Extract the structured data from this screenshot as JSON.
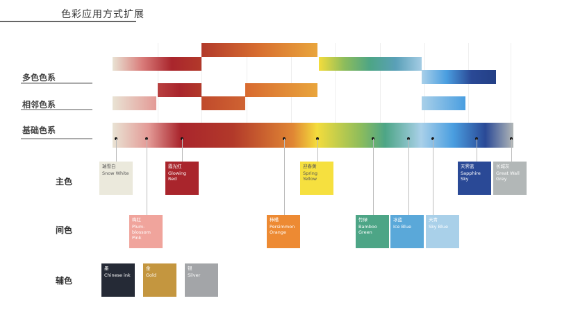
{
  "title": "色彩应用方式扩展",
  "row_labels": {
    "multi": "多色色系",
    "adjacent": "相邻色系",
    "base": "基础色系"
  },
  "categories": {
    "primary": "主色",
    "intermediate": "间色",
    "auxiliary": "辅色"
  },
  "swatches": {
    "primary": [
      {
        "cn": "瑞雪白",
        "en": "Snow White",
        "color": "#ebe9dc",
        "text": "#555"
      },
      {
        "cn": "霞光红",
        "en": "Glowing Red",
        "color": "#a9252c",
        "text": "#fff"
      },
      {
        "cn": "迎春黄",
        "en": "Spring Yellow",
        "color": "#f6e03f",
        "text": "#555"
      },
      {
        "cn": "天霁蓝",
        "en": "Sapphire Sky",
        "color": "#2a4996",
        "text": "#fff"
      },
      {
        "cn": "长城灰",
        "en": "Great Wall Grey",
        "color": "#b2b7b7",
        "text": "#fff"
      }
    ],
    "intermediate": [
      {
        "cn": "梅红",
        "en": "Plum-blossom Pink",
        "color": "#f0a49c",
        "text": "#fff"
      },
      {
        "cn": "柿橘",
        "en": "Persimmon Orange",
        "color": "#ed8a33",
        "text": "#fff"
      },
      {
        "cn": "竹绿",
        "en": "Bamboo Green",
        "color": "#4da586",
        "text": "#fff"
      },
      {
        "cn": "冰蓝",
        "en": "Ice Blue",
        "color": "#5aa8d9",
        "text": "#fff"
      },
      {
        "cn": "天青",
        "en": "Sky Blue",
        "color": "#a9d0e9",
        "text": "#fff"
      }
    ],
    "auxiliary": [
      {
        "cn": "墨",
        "en": "Chinese ink",
        "color": "#252a36",
        "text": "#fff"
      },
      {
        "cn": "金",
        "en": "Gold",
        "color": "#c4963f",
        "text": "#fff"
      },
      {
        "cn": "银",
        "en": "Silver",
        "color": "#a3a5a8",
        "text": "#fff"
      }
    ]
  }
}
